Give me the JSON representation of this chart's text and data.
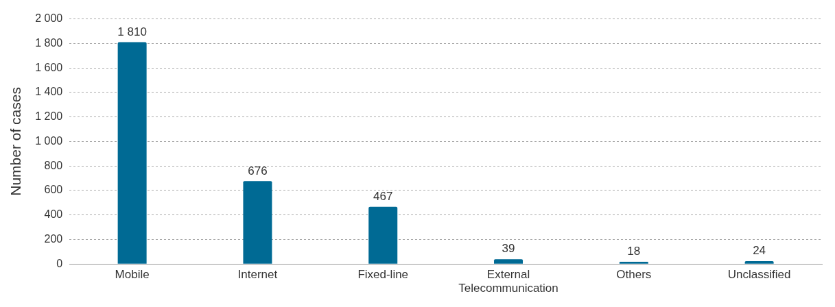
{
  "chart_data": {
    "type": "bar",
    "ylabel": "Number of cases",
    "categories": [
      "Mobile",
      "Internet",
      "Fixed-line",
      "External Telecommunication",
      "Others",
      "Unclassified"
    ],
    "values": [
      1810,
      676,
      467,
      39,
      18,
      24
    ],
    "value_labels": [
      "1 810",
      "676",
      "467",
      "39",
      "18",
      "24"
    ],
    "color": "#006a94",
    "ylim": [
      0,
      2000
    ],
    "yticks": [
      0,
      200,
      400,
      600,
      800,
      {
        "value": 1000,
        "label": "1 000"
      },
      {
        "value": 1200,
        "label": "1 200"
      },
      {
        "value": 1400,
        "label": "1 400"
      },
      {
        "value": 1600,
        "label": "1 600"
      },
      {
        "value": 1800,
        "label": "1 800"
      },
      {
        "value": 2000,
        "label": "2 000"
      }
    ],
    "grid": "y",
    "legend": false
  }
}
